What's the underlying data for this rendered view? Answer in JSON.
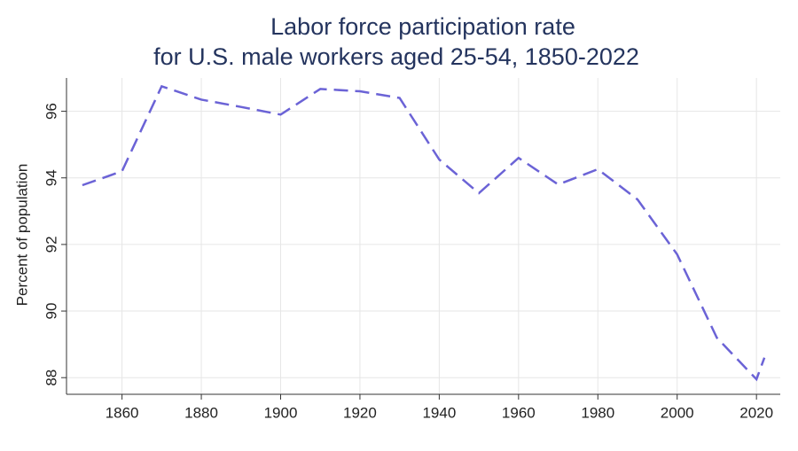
{
  "chart_data": {
    "type": "line",
    "title": [
      "Labor force participation rate",
      "for U.S. male workers aged 25-54, 1850-2022"
    ],
    "y_label": "Percent of population",
    "x": [
      1850,
      1860,
      1870,
      1880,
      1890,
      1900,
      1910,
      1920,
      1930,
      1940,
      1950,
      1960,
      1970,
      1980,
      1990,
      2000,
      2010,
      2020,
      2022
    ],
    "series": [
      {
        "color": "#6b63d6",
        "values": [
          93.78,
          94.2,
          96.75,
          96.35,
          96.13,
          95.9,
          96.67,
          96.6,
          96.4,
          94.55,
          93.54,
          94.6,
          93.8,
          94.26,
          93.35,
          91.7,
          89.2,
          87.95,
          88.6
        ]
      }
    ],
    "xlim": [
      1846,
      2026
    ],
    "ylim": [
      87.5,
      97
    ],
    "xticks": [
      1860,
      1880,
      1900,
      1920,
      1940,
      1960,
      1980,
      2000,
      2020
    ],
    "yticks": [
      88,
      90,
      92,
      94,
      96
    ],
    "grid": true,
    "dashed": true
  }
}
